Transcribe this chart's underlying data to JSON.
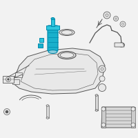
{
  "bg_color": "#f2f2f2",
  "line_color": "#555555",
  "highlight_color": "#1ab0cc",
  "highlight_color2": "#2ec5dd",
  "highlight_dark": "#0088aa",
  "part_fill": "#e8e8e8",
  "part_fill2": "#d8d8d8",
  "line_width": 0.7
}
